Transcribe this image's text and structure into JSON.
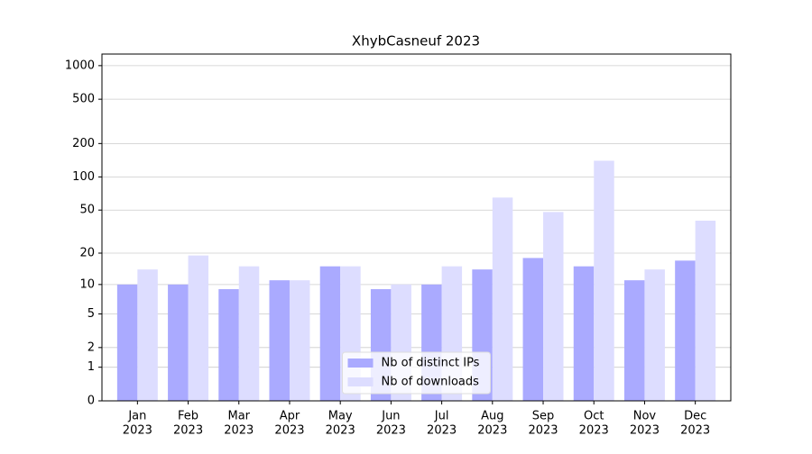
{
  "chart_data": {
    "type": "bar",
    "title": "XhybCasneuf 2023",
    "categories": [
      [
        "Jan",
        "2023"
      ],
      [
        "Feb",
        "2023"
      ],
      [
        "Mar",
        "2023"
      ],
      [
        "Apr",
        "2023"
      ],
      [
        "May",
        "2023"
      ],
      [
        "Jun",
        "2023"
      ],
      [
        "Jul",
        "2023"
      ],
      [
        "Aug",
        "2023"
      ],
      [
        "Sep",
        "2023"
      ],
      [
        "Oct",
        "2023"
      ],
      [
        "Nov",
        "2023"
      ],
      [
        "Dec",
        "2023"
      ]
    ],
    "series": [
      {
        "name": "Nb of distinct IPs",
        "color": "#aaaaff",
        "values": [
          10,
          10,
          9,
          11,
          15,
          9,
          10,
          14,
          18,
          15,
          11,
          17
        ]
      },
      {
        "name": "Nb of downloads",
        "color": "#ddddff",
        "values": [
          14,
          19,
          15,
          11,
          15,
          10,
          15,
          65,
          48,
          140,
          14,
          40
        ]
      }
    ],
    "yscale": "log1p",
    "ylim": [
      0,
      1270
    ],
    "yticks": [
      0,
      1,
      2,
      5,
      10,
      20,
      50,
      100,
      200,
      500,
      1000
    ],
    "grid": true,
    "legend": "lower center"
  }
}
